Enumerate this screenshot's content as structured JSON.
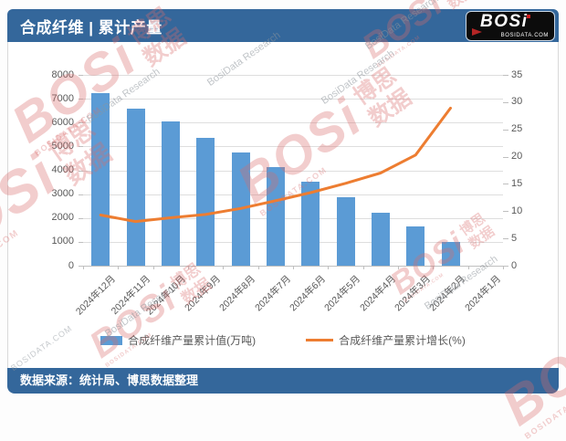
{
  "header": {
    "title": "合成纤维 | 累计产量",
    "logo": {
      "text": "BOSi",
      "domain": "BOSIDATA.COM"
    }
  },
  "footer": {
    "source_label": "数据来源：统计局、博思数据整理"
  },
  "watermark": {
    "brand": "BOSi",
    "brand_cn": "博思数据",
    "domain": "BOSIDATA.COM",
    "research": "BosiData Research"
  },
  "colors": {
    "header_blue": "#34679B",
    "bar_blue": "#5B9BD5",
    "line_orange": "#ED7D31",
    "axis_text": "#595959",
    "gridline": "#DEDEDE"
  },
  "chart_data": {
    "type": "bar+line combo",
    "categories": [
      "2024年12月",
      "2024年11月",
      "2024年10月",
      "2024年9月",
      "2024年8月",
      "2024年7月",
      "2024年6月",
      "2024年5月",
      "2024年4月",
      "2024年3月",
      "2024年2月",
      "2024年1月"
    ],
    "series": [
      {
        "name": "合成纤维产量累计值(万吨)",
        "type": "bar",
        "axis": "left",
        "color": "#5B9BD5",
        "values": [
          7230,
          6580,
          6040,
          5350,
          4730,
          4150,
          3540,
          2880,
          2230,
          1650,
          1000,
          null
        ]
      },
      {
        "name": "合成纤维产量累计增长(%)",
        "type": "line",
        "axis": "right",
        "color": "#ED7D31",
        "values": [
          9.3,
          8.1,
          8.8,
          9.4,
          10.5,
          11.9,
          13.4,
          15.1,
          17.0,
          20.3,
          28.9,
          null
        ]
      }
    ],
    "left_axis": {
      "min": 0,
      "max": 8000,
      "step": 1000,
      "tick_labels": [
        "0",
        "1000",
        "2000",
        "3000",
        "4000",
        "5000",
        "6000",
        "7000",
        "8000"
      ]
    },
    "right_axis": {
      "min": 0,
      "max": 35,
      "step": 5,
      "tick_labels": [
        "0",
        "5",
        "10",
        "15",
        "20",
        "25",
        "30",
        "35"
      ]
    },
    "grid": true,
    "legend_position": "bottom",
    "title": "合成纤维 | 累计产量"
  }
}
